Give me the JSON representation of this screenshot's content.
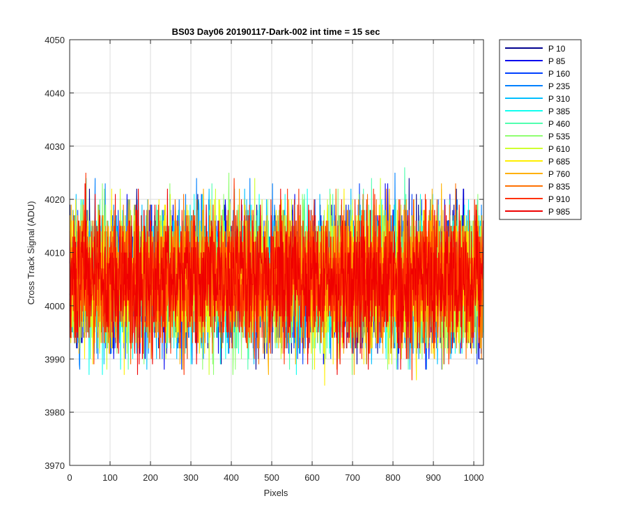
{
  "chart_data": {
    "type": "line",
    "title": "BS03 Day06 20190117-Dark-002 int time = 15 sec",
    "xlabel": "Pixels",
    "ylabel": "Cross Track Signal (ADU)",
    "xlim": [
      0,
      1024
    ],
    "ylim": [
      3970,
      4050
    ],
    "xticks": [
      0,
      100,
      200,
      300,
      400,
      500,
      600,
      700,
      800,
      900,
      1000
    ],
    "yticks": [
      3970,
      3980,
      3990,
      4000,
      4010,
      4020,
      4030,
      4040,
      4050
    ],
    "grid": true,
    "legend_position": "outside-top-right",
    "noise": {
      "mean": 4005,
      "sigma": 6.5
    },
    "series": [
      {
        "name": "P 10",
        "color": "#00008f",
        "seed": 10
      },
      {
        "name": "P 85",
        "color": "#0000ef",
        "seed": 85
      },
      {
        "name": "P 160",
        "color": "#0040ff",
        "seed": 160
      },
      {
        "name": "P 235",
        "color": "#0080ff",
        "seed": 235
      },
      {
        "name": "P 310",
        "color": "#00bfff",
        "seed": 310
      },
      {
        "name": "P 385",
        "color": "#10ffef",
        "seed": 385
      },
      {
        "name": "P 460",
        "color": "#50ffaf",
        "seed": 460
      },
      {
        "name": "P 535",
        "color": "#8fff70",
        "seed": 535
      },
      {
        "name": "P 610",
        "color": "#cfff30",
        "seed": 610
      },
      {
        "name": "P 685",
        "color": "#ffef00",
        "seed": 685
      },
      {
        "name": "P 760",
        "color": "#ffb000",
        "seed": 760
      },
      {
        "name": "P 835",
        "color": "#ff7000",
        "seed": 835
      },
      {
        "name": "P 910",
        "color": "#ff3000",
        "seed": 910
      },
      {
        "name": "P 985",
        "color": "#ef0000",
        "seed": 985
      }
    ]
  }
}
